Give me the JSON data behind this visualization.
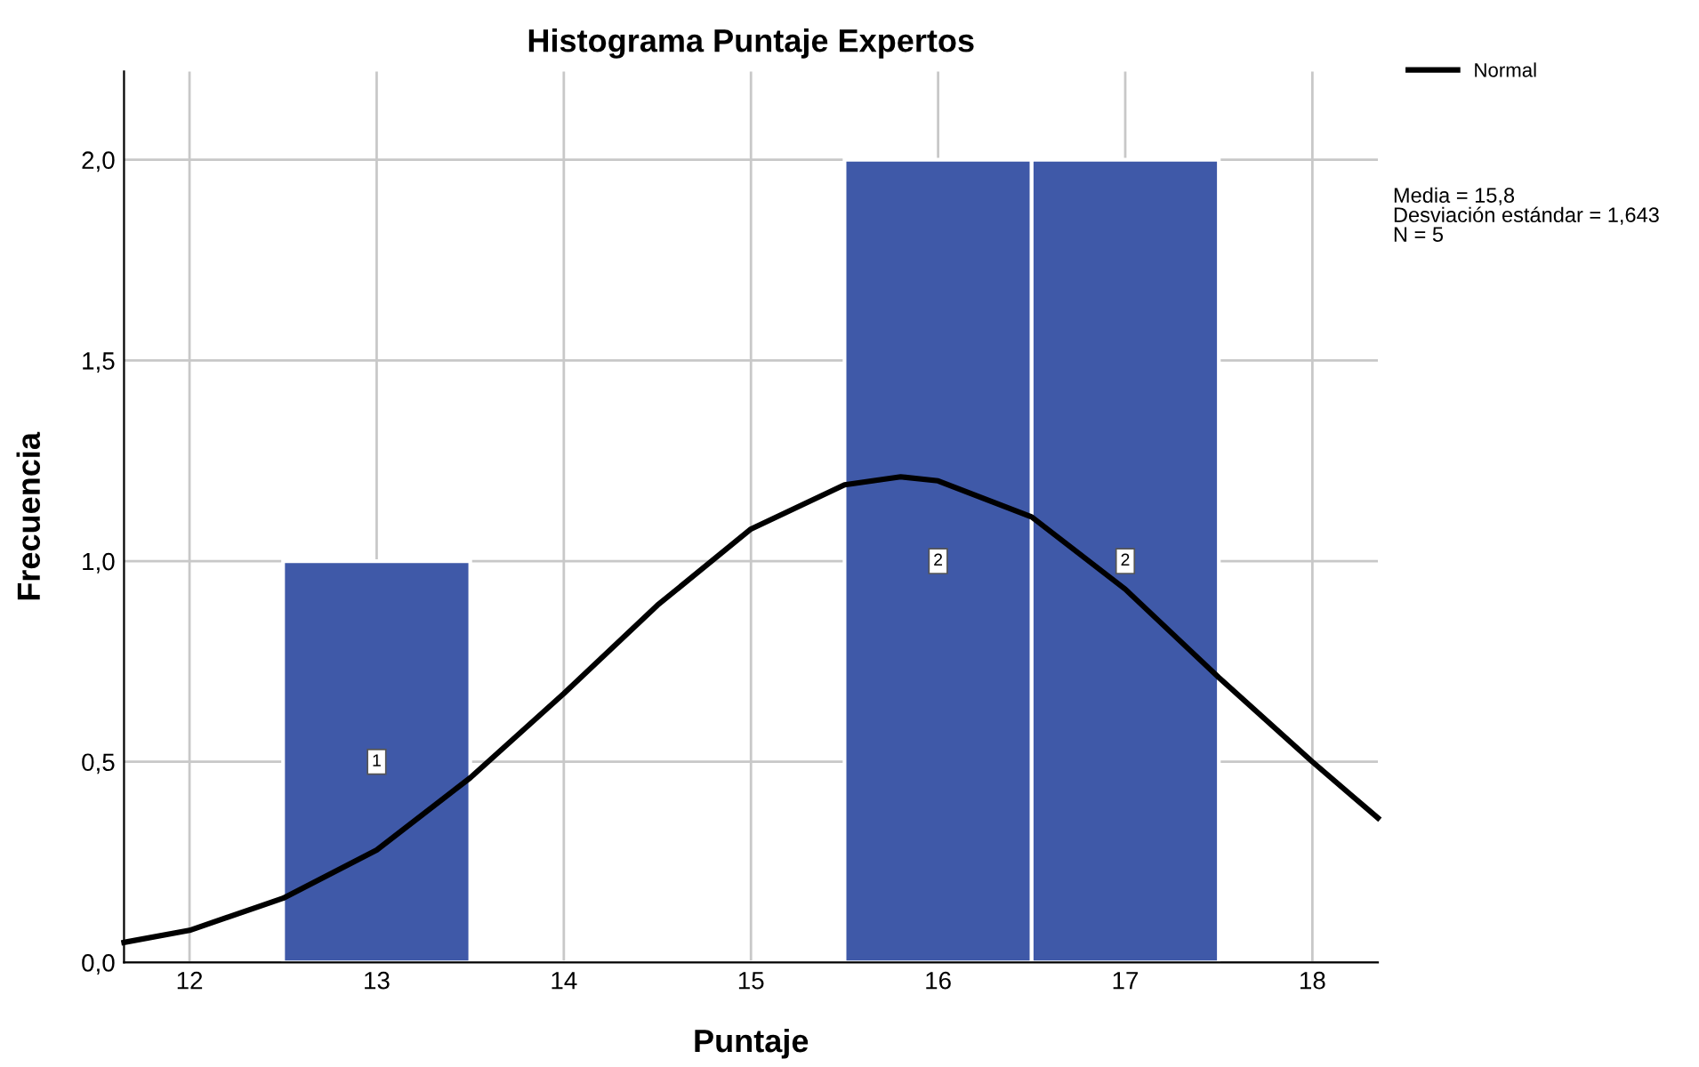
{
  "chart_data": {
    "type": "histogram",
    "title": "Histograma Puntaje Expertos",
    "xlabel": "Puntaje",
    "ylabel": "Frecuencia",
    "bins": [
      12.5,
      13.5,
      14.5,
      15.5,
      16.5,
      17.5
    ],
    "series": [
      {
        "color": "#3f59a8",
        "values": [
          1,
          0,
          0,
          2,
          2
        ],
        "value_labels": [
          "1",
          null,
          null,
          "2",
          "2"
        ]
      },
      {
        "type": "line",
        "name": "Normal",
        "color": "#000000",
        "x": [
          11.65,
          12,
          12.5,
          13,
          13.5,
          14,
          14.5,
          15,
          15.5,
          15.8,
          16,
          16.5,
          17,
          17.5,
          18,
          18.35
        ],
        "values": [
          0.05,
          0.08,
          0.16,
          0.28,
          0.46,
          0.67,
          0.89,
          1.08,
          1.19,
          1.21,
          1.2,
          1.11,
          0.93,
          0.71,
          0.5,
          0.36
        ]
      }
    ],
    "xlim": [
      11.65,
      18.35
    ],
    "xticks": [
      12,
      13,
      14,
      15,
      16,
      17,
      18
    ],
    "ylim": [
      0,
      2.22
    ],
    "yticks": [
      {
        "value": 0,
        "label": "0,0"
      },
      {
        "value": 0.5,
        "label": "0,5"
      },
      {
        "value": 1,
        "label": "1,0"
      },
      {
        "value": 1.5,
        "label": "1,5"
      },
      {
        "value": 2,
        "label": "2,0"
      }
    ],
    "grid": true,
    "legend": "top right",
    "line_style": "solid",
    "marker": "none",
    "annotations": [
      "Media = 15,8",
      "Desviación estándar = 1,643",
      "N = 5"
    ]
  }
}
